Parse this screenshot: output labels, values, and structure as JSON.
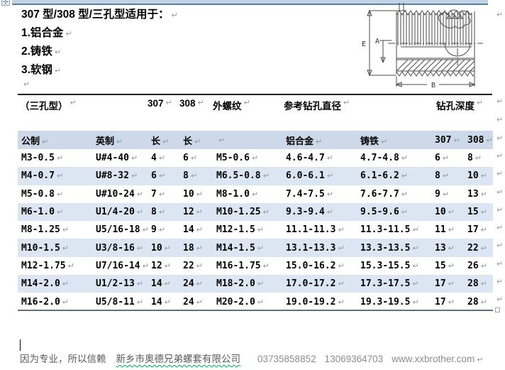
{
  "intro": {
    "title": "307 型/308 型/三孔型适用于：",
    "items": [
      "1.铝合金",
      "2.铸铁",
      "3.软钢"
    ]
  },
  "diagram": {
    "labels": [
      "E",
      "A",
      "B"
    ]
  },
  "type_header": {
    "cells": [
      "（三孔型）",
      "307",
      "308",
      "外螺纹",
      "参考钻孔直径",
      "钻孔深度"
    ]
  },
  "table": {
    "columns": [
      "公制",
      "英制",
      "长",
      "长",
      "",
      "铝合金",
      "铸铁",
      "307",
      "308"
    ],
    "rows": [
      [
        "M3-0.5",
        "U#4-40",
        "4",
        "6",
        "M5-0.6",
        "4.6-4.7",
        "4.7-4.8",
        "6",
        "8"
      ],
      [
        "M4-0.7",
        "U#8-32",
        "6",
        "8",
        "M6.5-0.8",
        "6.0-6.1",
        "6.1-6.2",
        "8",
        "10"
      ],
      [
        "M5-0.8",
        "U#10-24",
        "7",
        "10",
        "M8-1.0",
        "7.4-7.5",
        "7.6-7.7",
        "9",
        "13"
      ],
      [
        "M6-1.0",
        "U1/4-20",
        "8",
        "12",
        "M10-1.25",
        "9.3-9.4",
        "9.5-9.6",
        "10",
        "15"
      ],
      [
        "M8-1.25",
        "U5/16-18",
        "9",
        "14",
        "M12-1.5",
        "11.1-11.3",
        "11.3-11.5",
        "11",
        "17"
      ],
      [
        "M10-1.5",
        "U3/8-16",
        "10",
        "18",
        "M14-1.5",
        "13.1-13.3",
        "13.3-13.5",
        "13",
        "22"
      ],
      [
        "M12-1.75",
        "U7/16-14",
        "12",
        "22",
        "M16-1.75",
        "15.0-16.2",
        "15.3-15.5",
        "15",
        "26"
      ],
      [
        "M14-2.0",
        "U1/2-13",
        "14",
        "24",
        "M18-2.0",
        "17.0-17.2",
        "17.3-17.5",
        "17",
        "28"
      ],
      [
        "M16-2.0",
        "U5/8-11",
        "14",
        "24",
        "M20-2.0",
        "19.0-19.2",
        "19.3-19.5",
        "17",
        "28"
      ]
    ]
  },
  "footer": {
    "slogan": "因为专业，所以信赖",
    "company": "新乡市奥德兄弟螺套有限公司",
    "phone1": "03735858852",
    "phone2": "13069364703",
    "website": "www.xxbrother.com"
  },
  "icons": {
    "pilcrow": "↵",
    "move_handle": "✛",
    "resize_handle": "□"
  },
  "colors": {
    "accent_bar": "#c3d3e6",
    "accent_bar_edge": "#5f7e9e",
    "table_head_fill": "#cdd9e9",
    "row_alt_fill": "#dce6f2",
    "rule": "#1f1f1f",
    "table_bottom_border": "#5f6f80",
    "pilcrow": "#8f9aa6",
    "text": "#000000",
    "footer_text": "#595959",
    "footer_muted": "#8c8c8c",
    "spellcheck_wavy": "#00a651",
    "diagram_stroke": "#4a4a4a"
  }
}
